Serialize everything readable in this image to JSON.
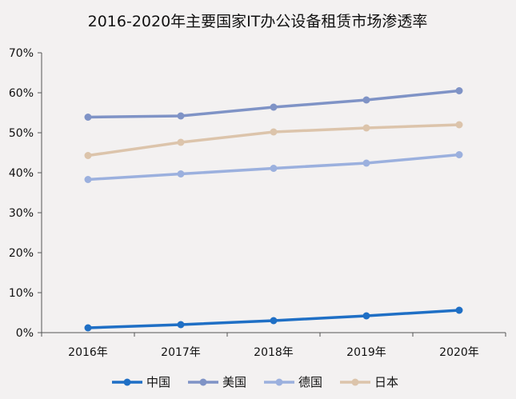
{
  "chart_data": {
    "type": "line",
    "title": "2016-2020年主要国家IT办公设备租赁市场渗透率",
    "xlabel": "",
    "ylabel": "",
    "categories": [
      "2016年",
      "2017年",
      "2018年",
      "2019年",
      "2020年"
    ],
    "ylim": [
      0,
      70
    ],
    "yticks": [
      "0%",
      "10%",
      "20%",
      "30%",
      "40%",
      "50%",
      "60%",
      "70%"
    ],
    "grid": false,
    "legend_position": "bottom",
    "series": [
      {
        "name": "中国",
        "color": "#1f6fc5",
        "values": [
          1.2,
          2.0,
          3.0,
          4.2,
          5.6
        ]
      },
      {
        "name": "美国",
        "color": "#7f93c6",
        "values": [
          53.9,
          54.2,
          56.4,
          58.2,
          60.5
        ]
      },
      {
        "name": "德国",
        "color": "#9bb0de",
        "values": [
          38.3,
          39.7,
          41.1,
          42.4,
          44.5
        ]
      },
      {
        "name": "日本",
        "color": "#dcc4ab",
        "values": [
          44.3,
          47.6,
          50.2,
          51.2,
          52.0
        ]
      }
    ]
  }
}
